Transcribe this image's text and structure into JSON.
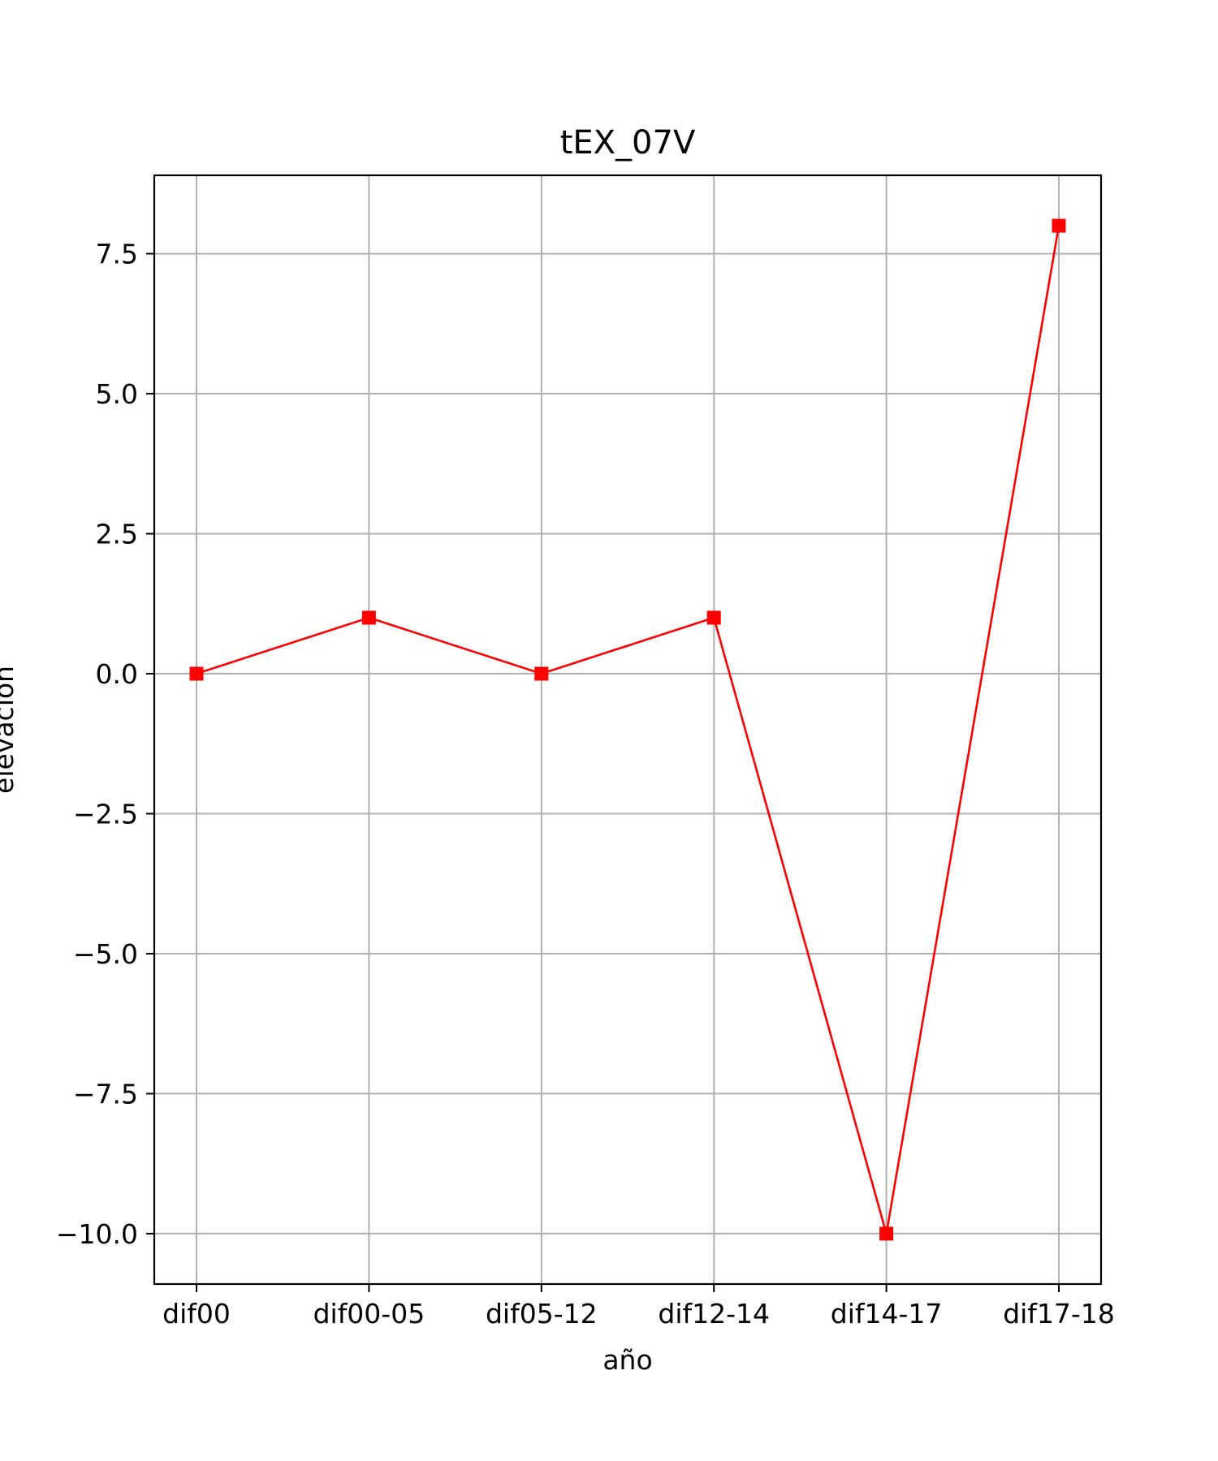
{
  "colors": {
    "series": "#ff0000",
    "grid": "#b0b0b0",
    "frame": "#000000",
    "background": "#ffffff"
  },
  "chart_data": {
    "type": "line",
    "title": "tEX_07V",
    "xlabel": "año",
    "ylabel": "elevación",
    "categories": [
      "dif00",
      "dif00-05",
      "dif05-12",
      "dif12-14",
      "dif14-17",
      "dif17-18"
    ],
    "series": [
      {
        "values": [
          0,
          1,
          0,
          1,
          -10,
          8
        ],
        "marker": "square",
        "color": "#ff0000"
      }
    ],
    "ylim": [
      -10.9,
      8.9
    ],
    "yticks": [
      -10.0,
      -7.5,
      -5.0,
      -2.5,
      0.0,
      2.5,
      5.0,
      7.5
    ],
    "ytick_labels": [
      "−10.0",
      "−7.5",
      "−5.0",
      "−2.5",
      "0.0",
      "2.5",
      "5.0",
      "7.5"
    ],
    "grid": true,
    "legend": "none"
  }
}
